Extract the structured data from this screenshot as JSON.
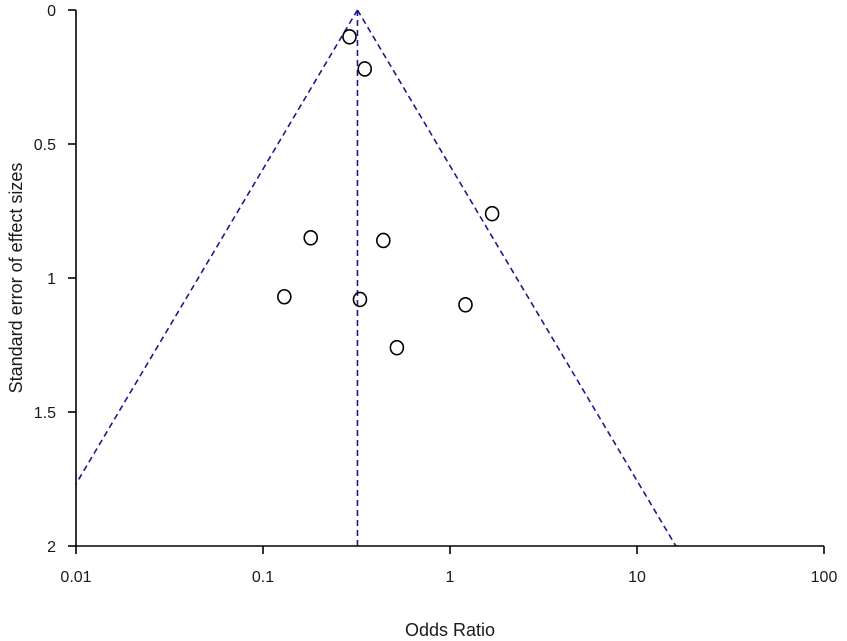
{
  "chart_data": {
    "type": "scatter",
    "title": "",
    "xlabel": "Odds Ratio",
    "ylabel": "Standard error of  effect sizes",
    "x_scale": "log",
    "x_range": [
      0.01,
      100
    ],
    "x_ticks": [
      0.01,
      0.1,
      1,
      10,
      100
    ],
    "x_tick_labels": [
      "0.01",
      "0.1",
      "1",
      "10",
      "100"
    ],
    "y_range": [
      0,
      2
    ],
    "y_inverted": true,
    "y_ticks": [
      0,
      0.5,
      1,
      1.5,
      2
    ],
    "y_tick_labels": [
      "0",
      "0.5",
      "1",
      "1.5",
      "2"
    ],
    "grid": false,
    "legend": "none",
    "pooled_or": 0.32,
    "funnel_z": 1.96,
    "guide_color": "#1a1a8c",
    "point_color": "#000000",
    "points": [
      {
        "x": 0.29,
        "y": 0.1
      },
      {
        "x": 0.35,
        "y": 0.22
      },
      {
        "x": 1.68,
        "y": 0.76
      },
      {
        "x": 0.18,
        "y": 0.85
      },
      {
        "x": 0.44,
        "y": 0.86
      },
      {
        "x": 0.13,
        "y": 1.07
      },
      {
        "x": 0.33,
        "y": 1.08
      },
      {
        "x": 1.21,
        "y": 1.1
      },
      {
        "x": 0.52,
        "y": 1.26
      }
    ]
  }
}
